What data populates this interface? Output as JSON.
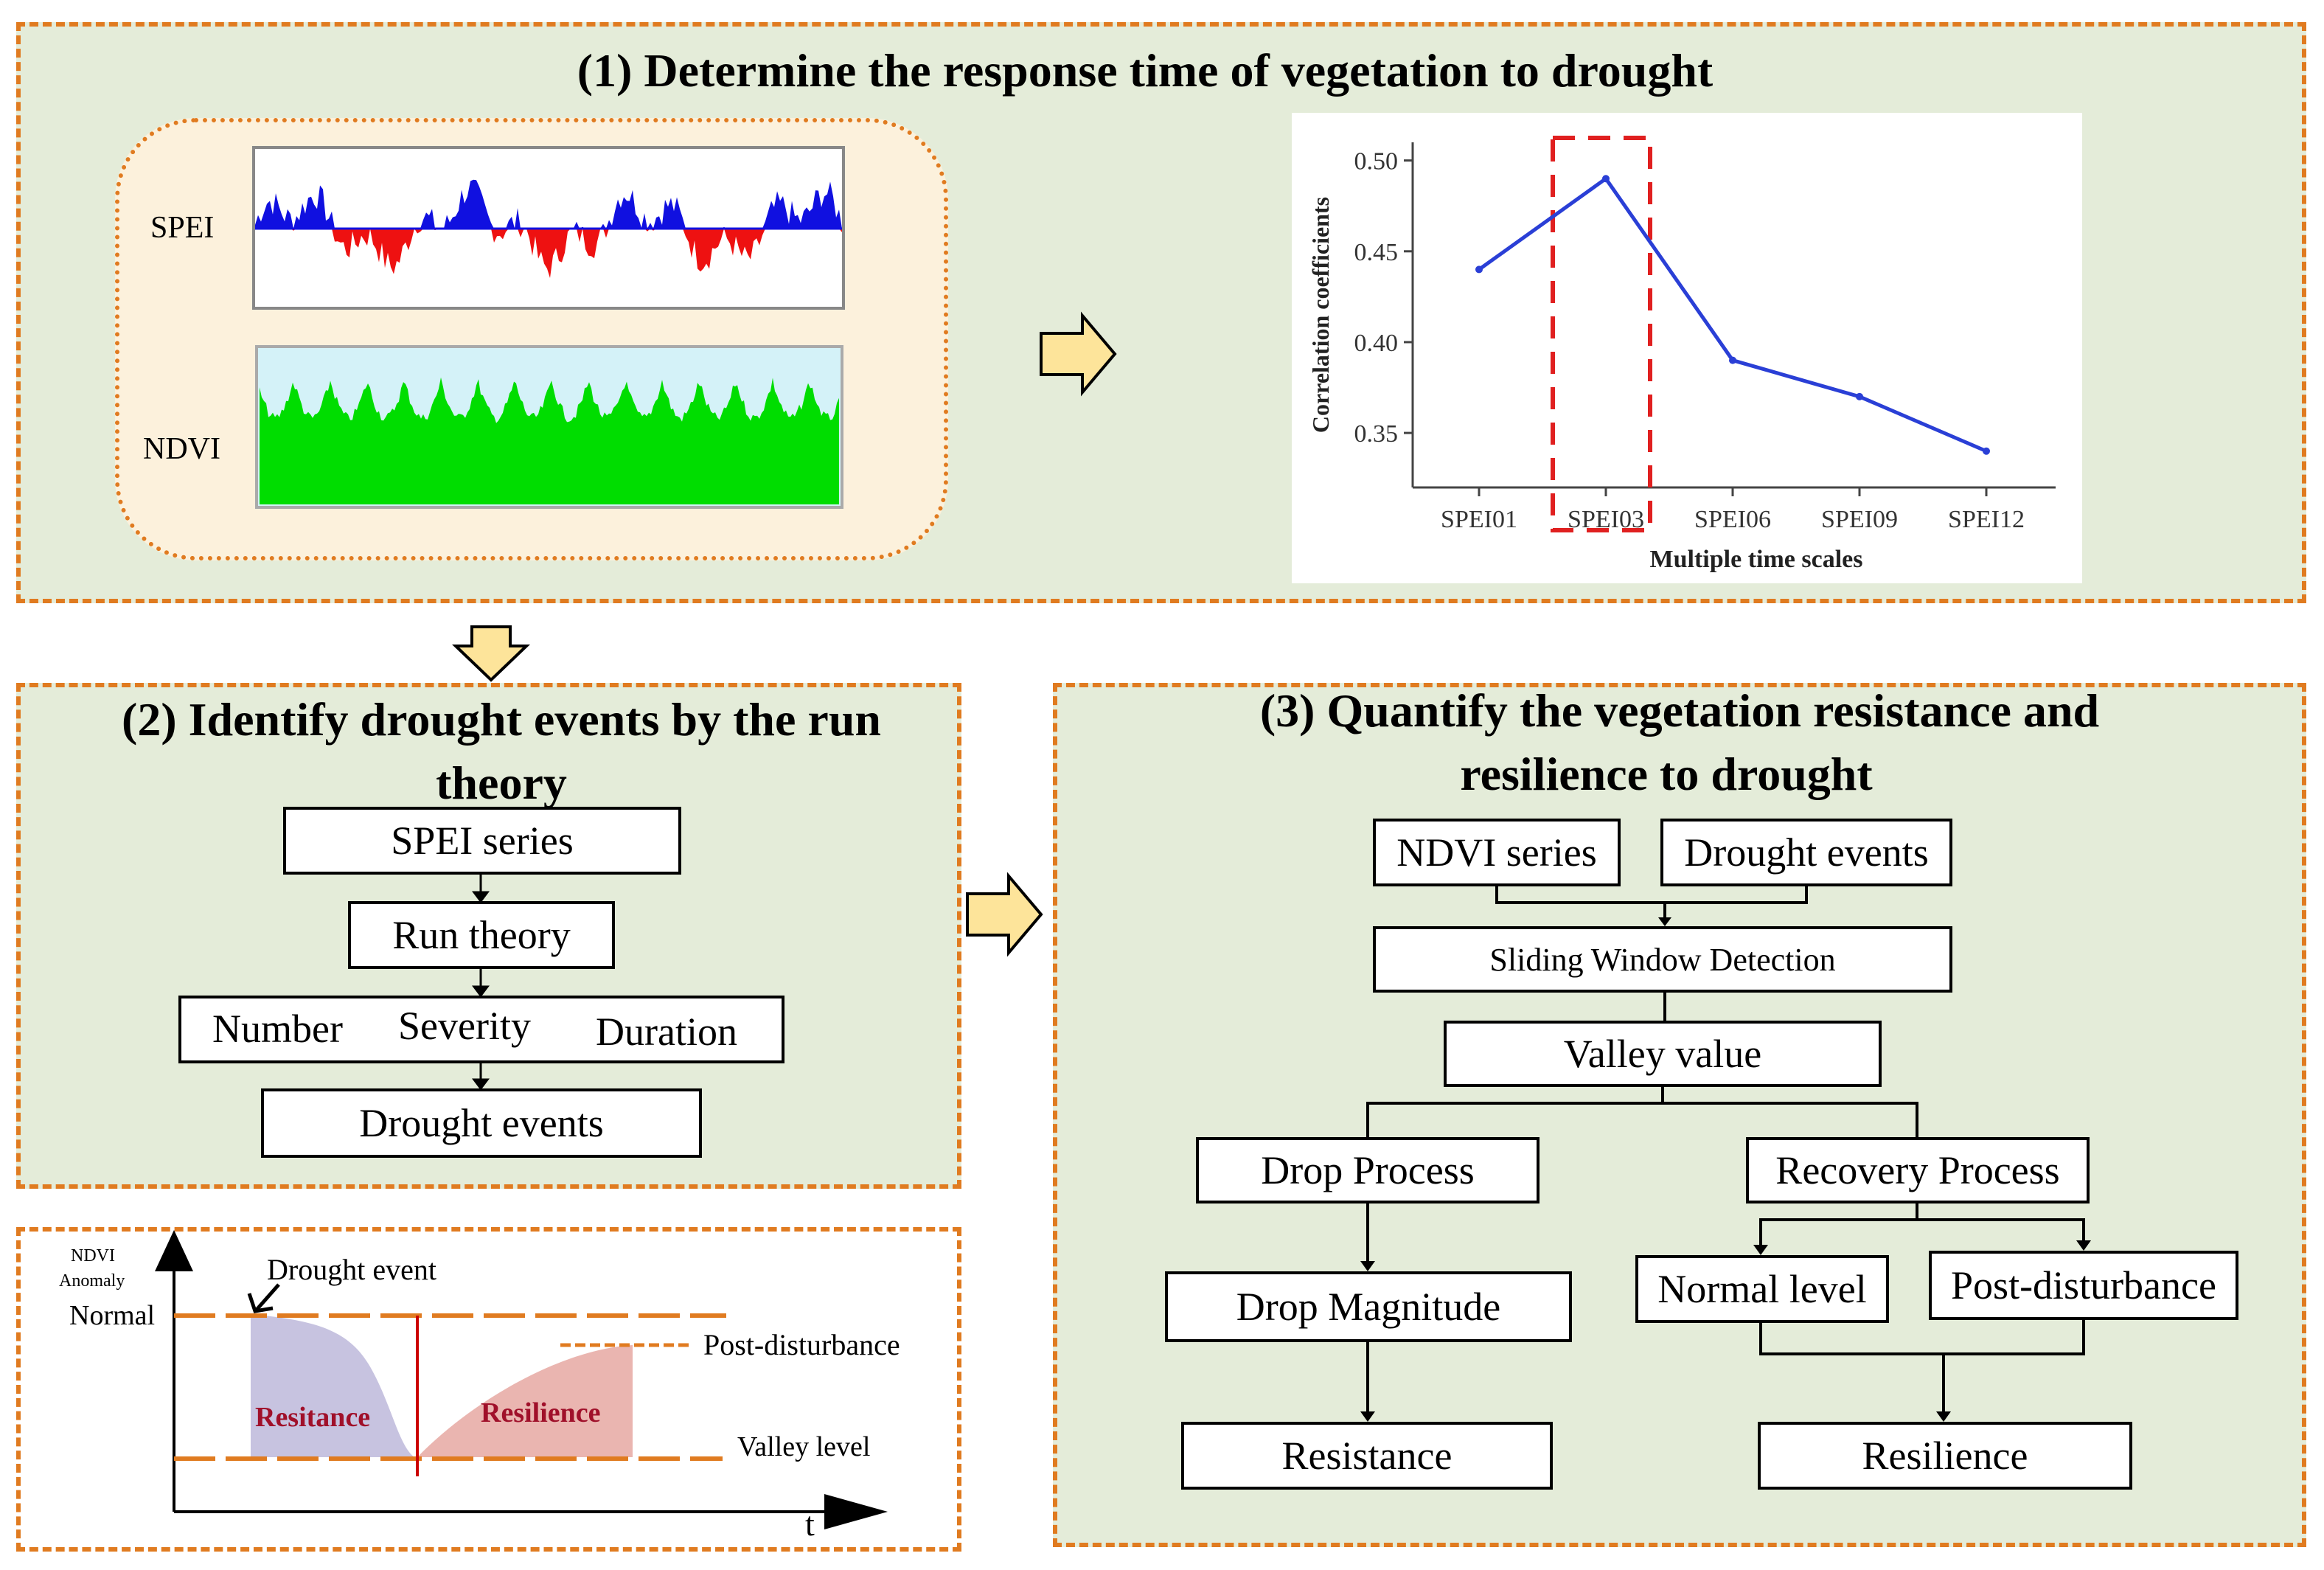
{
  "panel1": {
    "title": "(1) Determine the response time of vegetation to drought",
    "spei_label": "SPEI",
    "ndvi_label": "NDVI",
    "chart": {
      "ylabel": "Correlation coefficients",
      "xlabel": "Multiple time scales",
      "yticks": [
        "0.50",
        "0.45",
        "0.40",
        "0.35"
      ]
    }
  },
  "chart_data": {
    "type": "line",
    "categories": [
      "SPEI01",
      "SPEI03",
      "SPEI06",
      "SPEI09",
      "SPEI12"
    ],
    "values": [
      0.44,
      0.49,
      0.39,
      0.37,
      0.34
    ],
    "ylim": [
      0.32,
      0.51
    ],
    "ylabel": "Correlation coefficients",
    "xlabel": "Multiple time scales",
    "highlight": "SPEI03",
    "series_color": "#2a3fd6",
    "highlight_color": "#e02020"
  },
  "panel2": {
    "title_line1": "(2) Identify  drought events by the run",
    "title_line2": "theory",
    "box_spei": "SPEI series",
    "box_run": "Run theory",
    "number": "Number",
    "severity": "Severity",
    "duration": "Duration",
    "box_events": "Drought events"
  },
  "panel4": {
    "y_label_1": "NDVI",
    "y_label_2": "Anomaly",
    "normal": "Normal",
    "drought_event": "Drought event",
    "post_disturbance": "Post-disturbance",
    "resistance": "Resitance",
    "resilience": "Resilience",
    "valley_level": "Valley level",
    "t": "t"
  },
  "panel3": {
    "title_line1": "(3) Quantify the vegetation resistance and",
    "title_line2": "resilience to drought",
    "ndvi_series": "NDVI series",
    "drought_events": "Drought events",
    "sliding": "Sliding Window Detection",
    "valley": "Valley value",
    "drop_process": "Drop Process",
    "recovery_process": "Recovery Process",
    "drop_magnitude": "Drop Magnitude",
    "normal_level": "Normal level",
    "post_disturbance": "Post-disturbance",
    "resistance": "Resistance",
    "resilience": "Resilience"
  },
  "colors": {
    "border_orange": "#e07b20",
    "panel_bg": "#e4ecd9",
    "arrow_fill": "#fde49a",
    "spei_pos": "#1010e0",
    "spei_neg": "#ee1111",
    "ndvi_fill": "#00dd00",
    "ndvi_bg": "#d4f2f8",
    "resistance_fill": "#c7c3e0",
    "resilience_fill": "#eab5b0",
    "label_red": "#a0102a"
  }
}
